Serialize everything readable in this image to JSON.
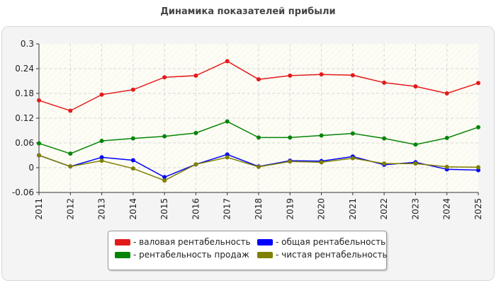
{
  "title": "Динамика показателей прибыли",
  "chart_data": {
    "type": "line",
    "title": "Динамика показателей прибыли",
    "xlabel": "",
    "ylabel": "",
    "x": [
      "2011",
      "2012",
      "2013",
      "2014",
      "2015",
      "2016",
      "2017",
      "2018",
      "2019",
      "2020",
      "2021",
      "2022",
      "2023",
      "2024",
      "2025"
    ],
    "ylim": [
      -0.06,
      0.3
    ],
    "yticks": [
      "-0.06",
      "0",
      "0.06",
      "0.12",
      "0.18",
      "0.24",
      "0.3"
    ],
    "ytick_values": [
      -0.06,
      0,
      0.06,
      0.12,
      0.18,
      0.24,
      0.3
    ],
    "grid": true,
    "legend_position": "bottom",
    "series": [
      {
        "name": "- валовая рентабельность",
        "color": "#e41a1a",
        "values": [
          0.163,
          0.138,
          0.177,
          0.189,
          0.219,
          0.223,
          0.258,
          0.214,
          0.223,
          0.226,
          0.224,
          0.206,
          0.197,
          0.18,
          0.205
        ]
      },
      {
        "name": "- общая рентабельность",
        "color": "#0000ff",
        "values": [
          0.03,
          0.003,
          0.025,
          0.018,
          -0.023,
          0.008,
          0.032,
          0.003,
          0.017,
          0.016,
          0.027,
          0.007,
          0.013,
          -0.004,
          -0.006
        ]
      },
      {
        "name": "- рентабельность продаж",
        "color": "#078407",
        "values": [
          0.059,
          0.034,
          0.065,
          0.071,
          0.076,
          0.084,
          0.112,
          0.073,
          0.073,
          0.078,
          0.083,
          0.071,
          0.056,
          0.072,
          0.098
        ]
      },
      {
        "name": "- чистая рентабельность",
        "color": "#7f7f00",
        "values": [
          0.03,
          0.003,
          0.017,
          -0.002,
          -0.031,
          0.008,
          0.025,
          0.002,
          0.015,
          0.013,
          0.023,
          0.01,
          0.01,
          0.002,
          0.001
        ]
      }
    ]
  }
}
